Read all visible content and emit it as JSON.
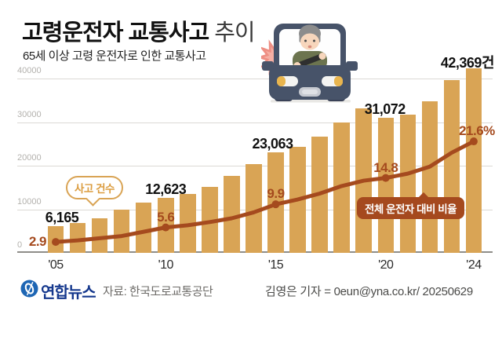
{
  "title": {
    "main": "고령운전자 교통사고",
    "suffix": "추이"
  },
  "subtitle": "65세 이상 고령 운전자로 인한 교통사고",
  "chart_data": {
    "type": "bar",
    "title": "고령운전자 교통사고 추이",
    "subtitle": "65세 이상 고령 운전자로 인한 교통사고",
    "categories": [
      "2005",
      "2006",
      "2007",
      "2008",
      "2009",
      "2010",
      "2011",
      "2012",
      "2013",
      "2014",
      "2015",
      "2016",
      "2017",
      "2018",
      "2019",
      "2020",
      "2021",
      "2022",
      "2023",
      "2024"
    ],
    "series": [
      {
        "name": "사고 건수",
        "type": "bar",
        "unit": "건",
        "color": "#D9A455",
        "values": [
          6165,
          6900,
          8000,
          9900,
          11600,
          12623,
          13600,
          15200,
          17600,
          20300,
          23063,
          24400,
          26700,
          30000,
          33200,
          31072,
          31800,
          34700,
          39600,
          42369
        ]
      },
      {
        "name": "전체 운전자 대비 비율",
        "type": "line",
        "unit": "%",
        "color": "#A54A1E",
        "values": [
          2.9,
          3.2,
          3.6,
          4.0,
          4.8,
          5.6,
          6.0,
          6.6,
          7.3,
          8.4,
          9.9,
          10.8,
          11.9,
          13.3,
          14.3,
          14.8,
          15.6,
          16.9,
          19.5,
          21.6
        ]
      }
    ],
    "bar_value_labels": [
      {
        "index": 0,
        "text": "6,165"
      },
      {
        "index": 5,
        "text": "12,623"
      },
      {
        "index": 10,
        "text": "23,063"
      },
      {
        "index": 15,
        "text": "31,072"
      },
      {
        "index": 19,
        "text": "42,369건"
      }
    ],
    "line_value_labels": [
      {
        "index": 0,
        "text": "2.9",
        "placement": "left"
      },
      {
        "index": 5,
        "text": "5.6",
        "placement": "above"
      },
      {
        "index": 10,
        "text": "9.9",
        "placement": "above"
      },
      {
        "index": 15,
        "text": "14.8",
        "placement": "above"
      },
      {
        "index": 19,
        "text": "21.6%",
        "placement": "above"
      }
    ],
    "x_tick_labels": [
      {
        "index": 0,
        "text": "'05"
      },
      {
        "index": 5,
        "text": "'10"
      },
      {
        "index": 10,
        "text": "'15"
      },
      {
        "index": 15,
        "text": "'20"
      },
      {
        "index": 19,
        "text": "'24"
      }
    ],
    "y_axis": {
      "ticks": [
        {
          "value": 0,
          "label": "0"
        },
        {
          "value": 10000,
          "label": "10000"
        },
        {
          "value": 20000,
          "label": "20000"
        },
        {
          "value": 30000,
          "label": "30000"
        },
        {
          "value": 40000,
          "label": "40000"
        }
      ],
      "max": 43000
    },
    "grid": true,
    "legend_position": "on-chart-callouts"
  },
  "annotations": {
    "bar_callout": "사고 건수",
    "line_callout": "전체 운전자 대비 비율"
  },
  "footer": {
    "brand": "연합뉴스",
    "source": "자료: 한국도로교통공단",
    "credit": "김영은 기자 = 0eun@yna.co.kr/ 20250629"
  },
  "colors": {
    "bar": "#D9A455",
    "line": "#A54A1E",
    "bubble_bar_text": "#DB9C3F",
    "bubble_line_bg": "#A5491E",
    "brand_blue": "#1E66B4",
    "brand_navy": "#15388D",
    "crash_burst": "#EE8F84",
    "car_body": "#475369"
  }
}
